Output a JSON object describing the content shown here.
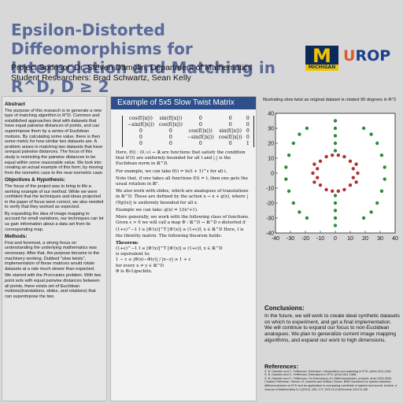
{
  "header": {
    "title": "Epsilon-Distorted Diffeomorphisms for Interpolation and Matching in R^D, D ≥ 2",
    "sponsor": "Project Sponsor: Dr. Steven Damelin, Department of Mathematics",
    "researchers": "Student Researchers: Brad Schwartz, Sean Kelly",
    "logo_m": "M",
    "logo_m_sub": "MICHIGAN",
    "logo_urop_u": "U",
    "logo_urop_rest": "ROP"
  },
  "left": {
    "abstract_heading": "Abstract",
    "abstract": "The purpose of this research is to generate a new type of matching algorithm in R^D. Common and established approaches deal with datasets that have equal pairwise distances of points, and can superimpose them by a series of Euclidean motions. By calculating some value, there is then some metric for how similar two datasets are. A problem arises in matching two datasets that have unequal pairwise distances. The focus of this study is restricting the pairwise distances to be equal within some reasonable value. We look into creating an actual example of this form, by moving from the isometric case to the near-isometric case.",
    "obj_heading": "Objectives & Hypothesis:",
    "obj_1": "The focus of the project was to bring to life a working example of our method. While we were confident that the techniques and ideas projected in the paper of focus were correct, we also needed to verify that they worked as expected.",
    "obj_2": "By expanding the idea of image mapping to account for small variations, our techniques can let us gain information about a data set from its corresponding map.",
    "methods_heading": "Methods:",
    "methods_1": "First and foremost, a strong focus on understanding the underlying mathematics was necessary. After that, the purpose became to the machinery working. Dubbed \"slow twists\", implementation of these matrices would rotate datasets at a rate much slower than expected.",
    "methods_2": "We started with the Procrustes problem. With two point sets with equal pairwise distances between all points, there exists set of Euclidean motions(translations, slides, and rotations) that can superimpose the two."
  },
  "middle": {
    "banner": "Example of 5x5 Slow Twist Matrix",
    "matrix": [
      [
        "cos(f(|x|))",
        "sin(f(|x|))",
        "0",
        "0",
        "0"
      ],
      [
        "−sin(f(|x|))",
        "cos(f(|x|))",
        "0",
        "0",
        "0"
      ],
      [
        "0",
        "0",
        "cos(f(|x|))",
        "sin(f(|x|))",
        "0"
      ],
      [
        "0",
        "0",
        "−sin(f(|x|))",
        "cos(f(|x|))",
        "0"
      ],
      [
        "0",
        "0",
        "0",
        "0",
        "1"
      ]
    ],
    "p1": "Here, f(t) : (0,∞) → ℝ are functions that satisfy the condition that tf′(t) are uniformly bounded for all t and |.| is the Euclidean norm in ℝ^D.",
    "p2": "For example, we can take f(t) = ln(t + 1)^ε for all i.",
    "p3": "Note that, if one takes all functions f(t) = t, then one gets the usual rotation in ℝ².",
    "p4": "We also work with slides, which are analogues of translations in ℝ^D. These are defined by the action x → x + g(x), where |(∇g)(x)| is uniformly bounded for all x.",
    "p5": "Example we can take: g(x) = 1/(x²+1).",
    "p6": "More generally, we work with the following class of functions. Given ε > 0 we will call a map Φ : ℝ^D → ℝ^D ε-distorted if",
    "p7": "(1+ε)^−1 I ≤ [Φ′(x)]^T [Φ′(x)] ≤ (1+ε)I, x ∈ ℝ^D  Here, I is the Identity matrix. The following theorem holds:",
    "theorem": "Theorem:",
    "t1": "(1+ε)^−1 I ≤ [Φ′(x)]^T [Φ′(x)] ≤ (1+ε)I, x ∈ ℝ^D",
    "t2": "is equivalent to:",
    "t3": "1 − ε ≤ |Φ(x)−Φ(y)| / |x−y| ≤ 1 + ε",
    "t4": "for every x ≠ y ∈ ℝ^D",
    "t5": "Φ is Bi-Lipschitz."
  },
  "right": {
    "chart_caption": "Illustrating slow twist as original dataset is rotated 90 degrees in R^2",
    "conclusions_heading": "Conclusions:",
    "conclusions": "In the future, we will work to create ideal synthetic datasets on which to experiment, and get a final implementation. We will continue to expand our focus to non-Euclidean analogues. We plan to generalize current image mapping algorithms, and expand our work to high dimensions.",
    "references_heading": "References:",
    "references": [
      "S. B. Damelin and C. Fefferman, Extension, interpolation and matching in R^D, arXiv:1411.2451",
      "S. B. Damelin and C. Fefferman, Extensions in R^D, arXiv:1411.2468.",
      "S. B. Damelin and C. Fefferman, On Extensions of ε-Diffeomorphisms, preprint, arxiv:1502.0000",
      "Charles Fefferman, Steven. B. Damelin and William Glover, BMO theorems for epsilon distorted diffeomorphisms on R^D and an application to comparing manifolds of speech and sound, Involve, a Journal of Mathematics 5-2 (2012), 159–172. DOI 10.2140/involve.2012.5.159"
    ]
  },
  "colors": {
    "title": "#5a6a9a",
    "banner": "#2e4f8a",
    "green_points": "#2e8b3a",
    "red_points": "#b03030",
    "michigan_blue": "#0b2a5a",
    "michigan_maize": "#f2c400"
  },
  "chart_data": {
    "type": "scatter",
    "title": "",
    "xlabel": "",
    "ylabel": "",
    "xlim": [
      -40,
      40
    ],
    "ylim": [
      -40,
      40
    ],
    "x_ticks": [
      -40,
      -30,
      -20,
      -10,
      0,
      10,
      20,
      30,
      40
    ],
    "y_ticks": [
      -40,
      -30,
      -20,
      -10,
      0,
      10,
      20,
      30,
      40
    ],
    "grid": false,
    "series": [
      {
        "color": "#2e8b3a",
        "points": [
          [
            0,
            35
          ],
          [
            0,
            30
          ],
          [
            0,
            25
          ],
          [
            0,
            20
          ],
          [
            0,
            15
          ],
          [
            0,
            -15
          ],
          [
            0,
            -20
          ],
          [
            0,
            -25
          ],
          [
            0,
            -30
          ],
          [
            0,
            -35
          ],
          [
            -24,
            26
          ],
          [
            -28,
            20
          ],
          [
            -31,
            12
          ],
          [
            -33,
            4
          ],
          [
            -33,
            -4
          ],
          [
            -31,
            -12
          ],
          [
            -28,
            -20
          ],
          [
            -24,
            -26
          ],
          [
            24,
            26
          ],
          [
            28,
            20
          ],
          [
            31,
            12
          ],
          [
            33,
            4
          ],
          [
            33,
            -4
          ],
          [
            31,
            -12
          ],
          [
            28,
            -20
          ],
          [
            24,
            -26
          ],
          [
            -19,
            30
          ],
          [
            19,
            30
          ],
          [
            -19,
            -30
          ],
          [
            19,
            -30
          ]
        ]
      },
      {
        "color": "#b03030",
        "points": [
          [
            -10,
            8
          ],
          [
            -6,
            11
          ],
          [
            -2,
            12
          ],
          [
            2,
            12
          ],
          [
            6,
            11
          ],
          [
            10,
            8
          ],
          [
            -12,
            3
          ],
          [
            12,
            3
          ],
          [
            -12,
            -3
          ],
          [
            12,
            -3
          ],
          [
            -10,
            -8
          ],
          [
            -6,
            -11
          ],
          [
            -2,
            -12
          ],
          [
            2,
            -12
          ],
          [
            6,
            -11
          ],
          [
            10,
            -8
          ],
          [
            -15,
            0
          ],
          [
            15,
            0
          ],
          [
            -14,
            6
          ],
          [
            14,
            6
          ],
          [
            -14,
            -6
          ],
          [
            14,
            -6
          ]
        ]
      }
    ]
  }
}
